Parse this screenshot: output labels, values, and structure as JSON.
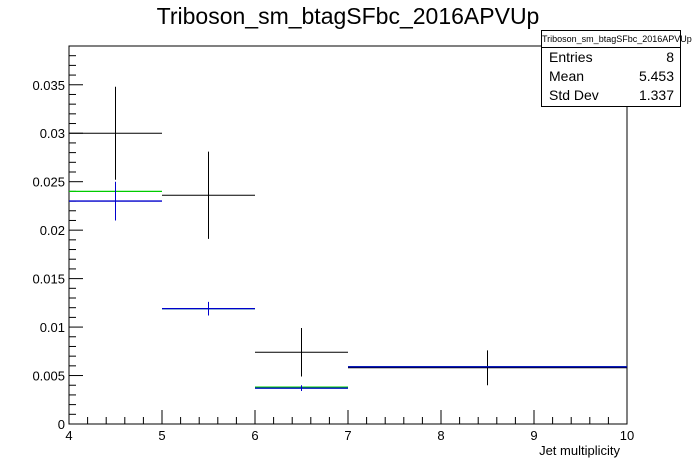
{
  "chart_data": {
    "type": "histogram",
    "title": "Triboson_sm_btagSFbc_2016APVUp",
    "xlabel": "Jet multiplicity",
    "ylabel": "",
    "xlim": [
      4,
      10
    ],
    "ylim": [
      0,
      0.039
    ],
    "x_ticks": [
      "4",
      "5",
      "6",
      "7",
      "8",
      "9",
      "10"
    ],
    "y_ticks": [
      "0",
      "0.005",
      "0.01",
      "0.015",
      "0.02",
      "0.025",
      "0.03",
      "0.035"
    ],
    "grid": false,
    "series": [
      {
        "color": "#000000",
        "bins": [
          {
            "x0": 4,
            "x1": 5,
            "y": 0.03,
            "err": 0.0048
          },
          {
            "x0": 5,
            "x1": 6,
            "y": 0.0236,
            "err": 0.0045
          },
          {
            "x0": 6,
            "x1": 7,
            "y": 0.0074,
            "err": 0.0025
          },
          {
            "x0": 7,
            "x1": 10,
            "y": 0.0058,
            "err": 0.0018
          }
        ]
      },
      {
        "color": "#00cc00",
        "bins": [
          {
            "x0": 4,
            "x1": 5,
            "y": 0.024,
            "err": 0.0
          },
          {
            "x0": 5,
            "x1": 6,
            "y": 0.0119,
            "err": 0.0
          },
          {
            "x0": 6,
            "x1": 7,
            "y": 0.0038,
            "err": 0.0
          },
          {
            "x0": 7,
            "x1": 10,
            "y": 0.0059,
            "err": 0.0
          }
        ]
      },
      {
        "color": "#008b8b",
        "bins": [
          {
            "x0": 5,
            "x1": 6,
            "y": 0.0119,
            "err": 0.0
          },
          {
            "x0": 6,
            "x1": 7,
            "y": 0.0037,
            "err": 0.0
          }
        ]
      },
      {
        "color": "#0000cc",
        "bins": [
          {
            "x0": 4,
            "x1": 5,
            "y": 0.023,
            "err": 0.002
          },
          {
            "x0": 5,
            "x1": 6,
            "y": 0.0119,
            "err": 0.0007
          },
          {
            "x0": 6,
            "x1": 7,
            "y": 0.0037,
            "err": 0.0003
          },
          {
            "x0": 7,
            "x1": 10,
            "y": 0.0059,
            "err": 0.0
          }
        ]
      }
    ]
  },
  "stats_box": {
    "title": "Triboson_sm_btagSFbc_2016APVUp",
    "rows": [
      {
        "label": "Entries",
        "value": "8"
      },
      {
        "label": "Mean",
        "value": "5.453"
      },
      {
        "label": "Std Dev",
        "value": "1.337"
      }
    ]
  }
}
